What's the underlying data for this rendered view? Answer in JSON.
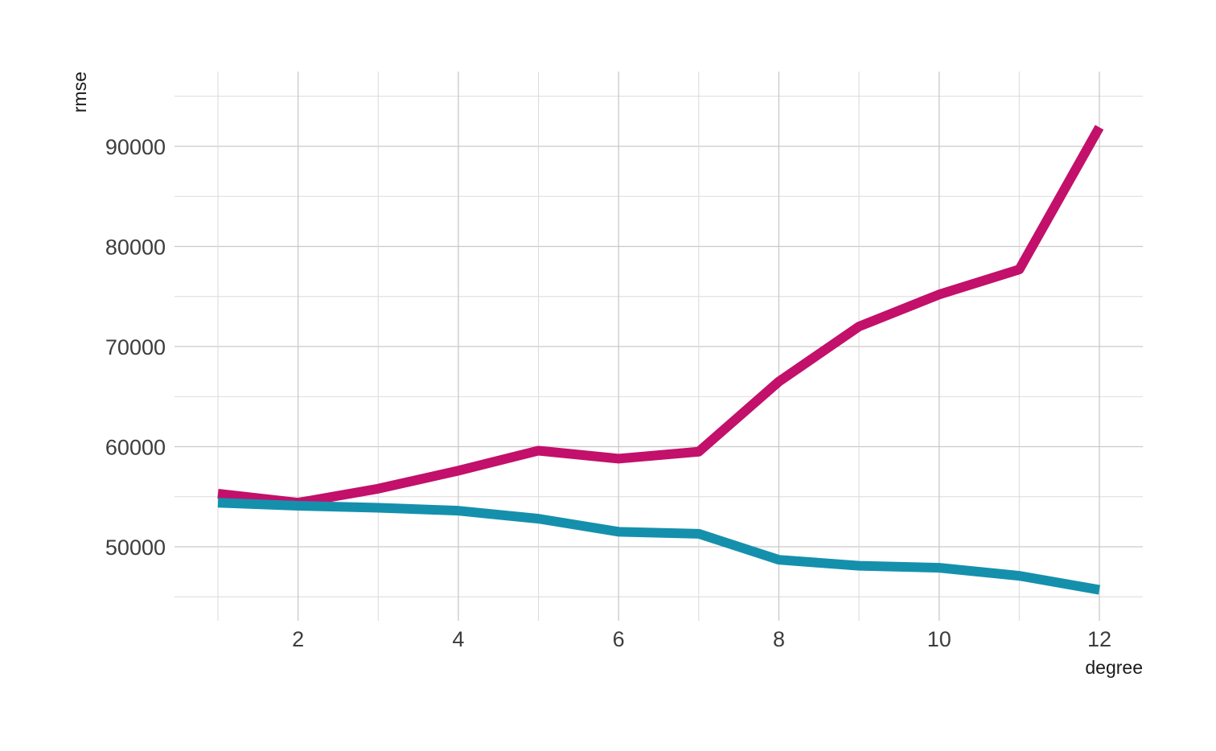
{
  "chart_data": {
    "type": "line",
    "xlabel": "degree",
    "ylabel": "rmse",
    "x": [
      1,
      2,
      3,
      4,
      5,
      6,
      7,
      8,
      9,
      10,
      11,
      12
    ],
    "xlim": [
      0.45,
      12.55
    ],
    "ylim": [
      44500,
      96000
    ],
    "x_ticks": [
      2,
      4,
      6,
      8,
      10,
      12
    ],
    "x_minor": [
      1,
      3,
      5,
      7,
      9,
      11
    ],
    "y_ticks": [
      50000,
      60000,
      70000,
      80000,
      90000
    ],
    "y_minor": [
      45000,
      55000,
      65000,
      75000,
      85000,
      95000
    ],
    "grid": true,
    "legend": "none",
    "series": [
      {
        "color": "#C2106B",
        "values": [
          55300,
          54400,
          55800,
          57600,
          59600,
          58800,
          59500,
          66500,
          72000,
          75200,
          77700,
          91900
        ]
      },
      {
        "color": "#1590AC",
        "values": [
          54400,
          54100,
          53900,
          53600,
          52800,
          51500,
          51300,
          48700,
          48100,
          47900,
          47100,
          45700
        ]
      }
    ]
  }
}
